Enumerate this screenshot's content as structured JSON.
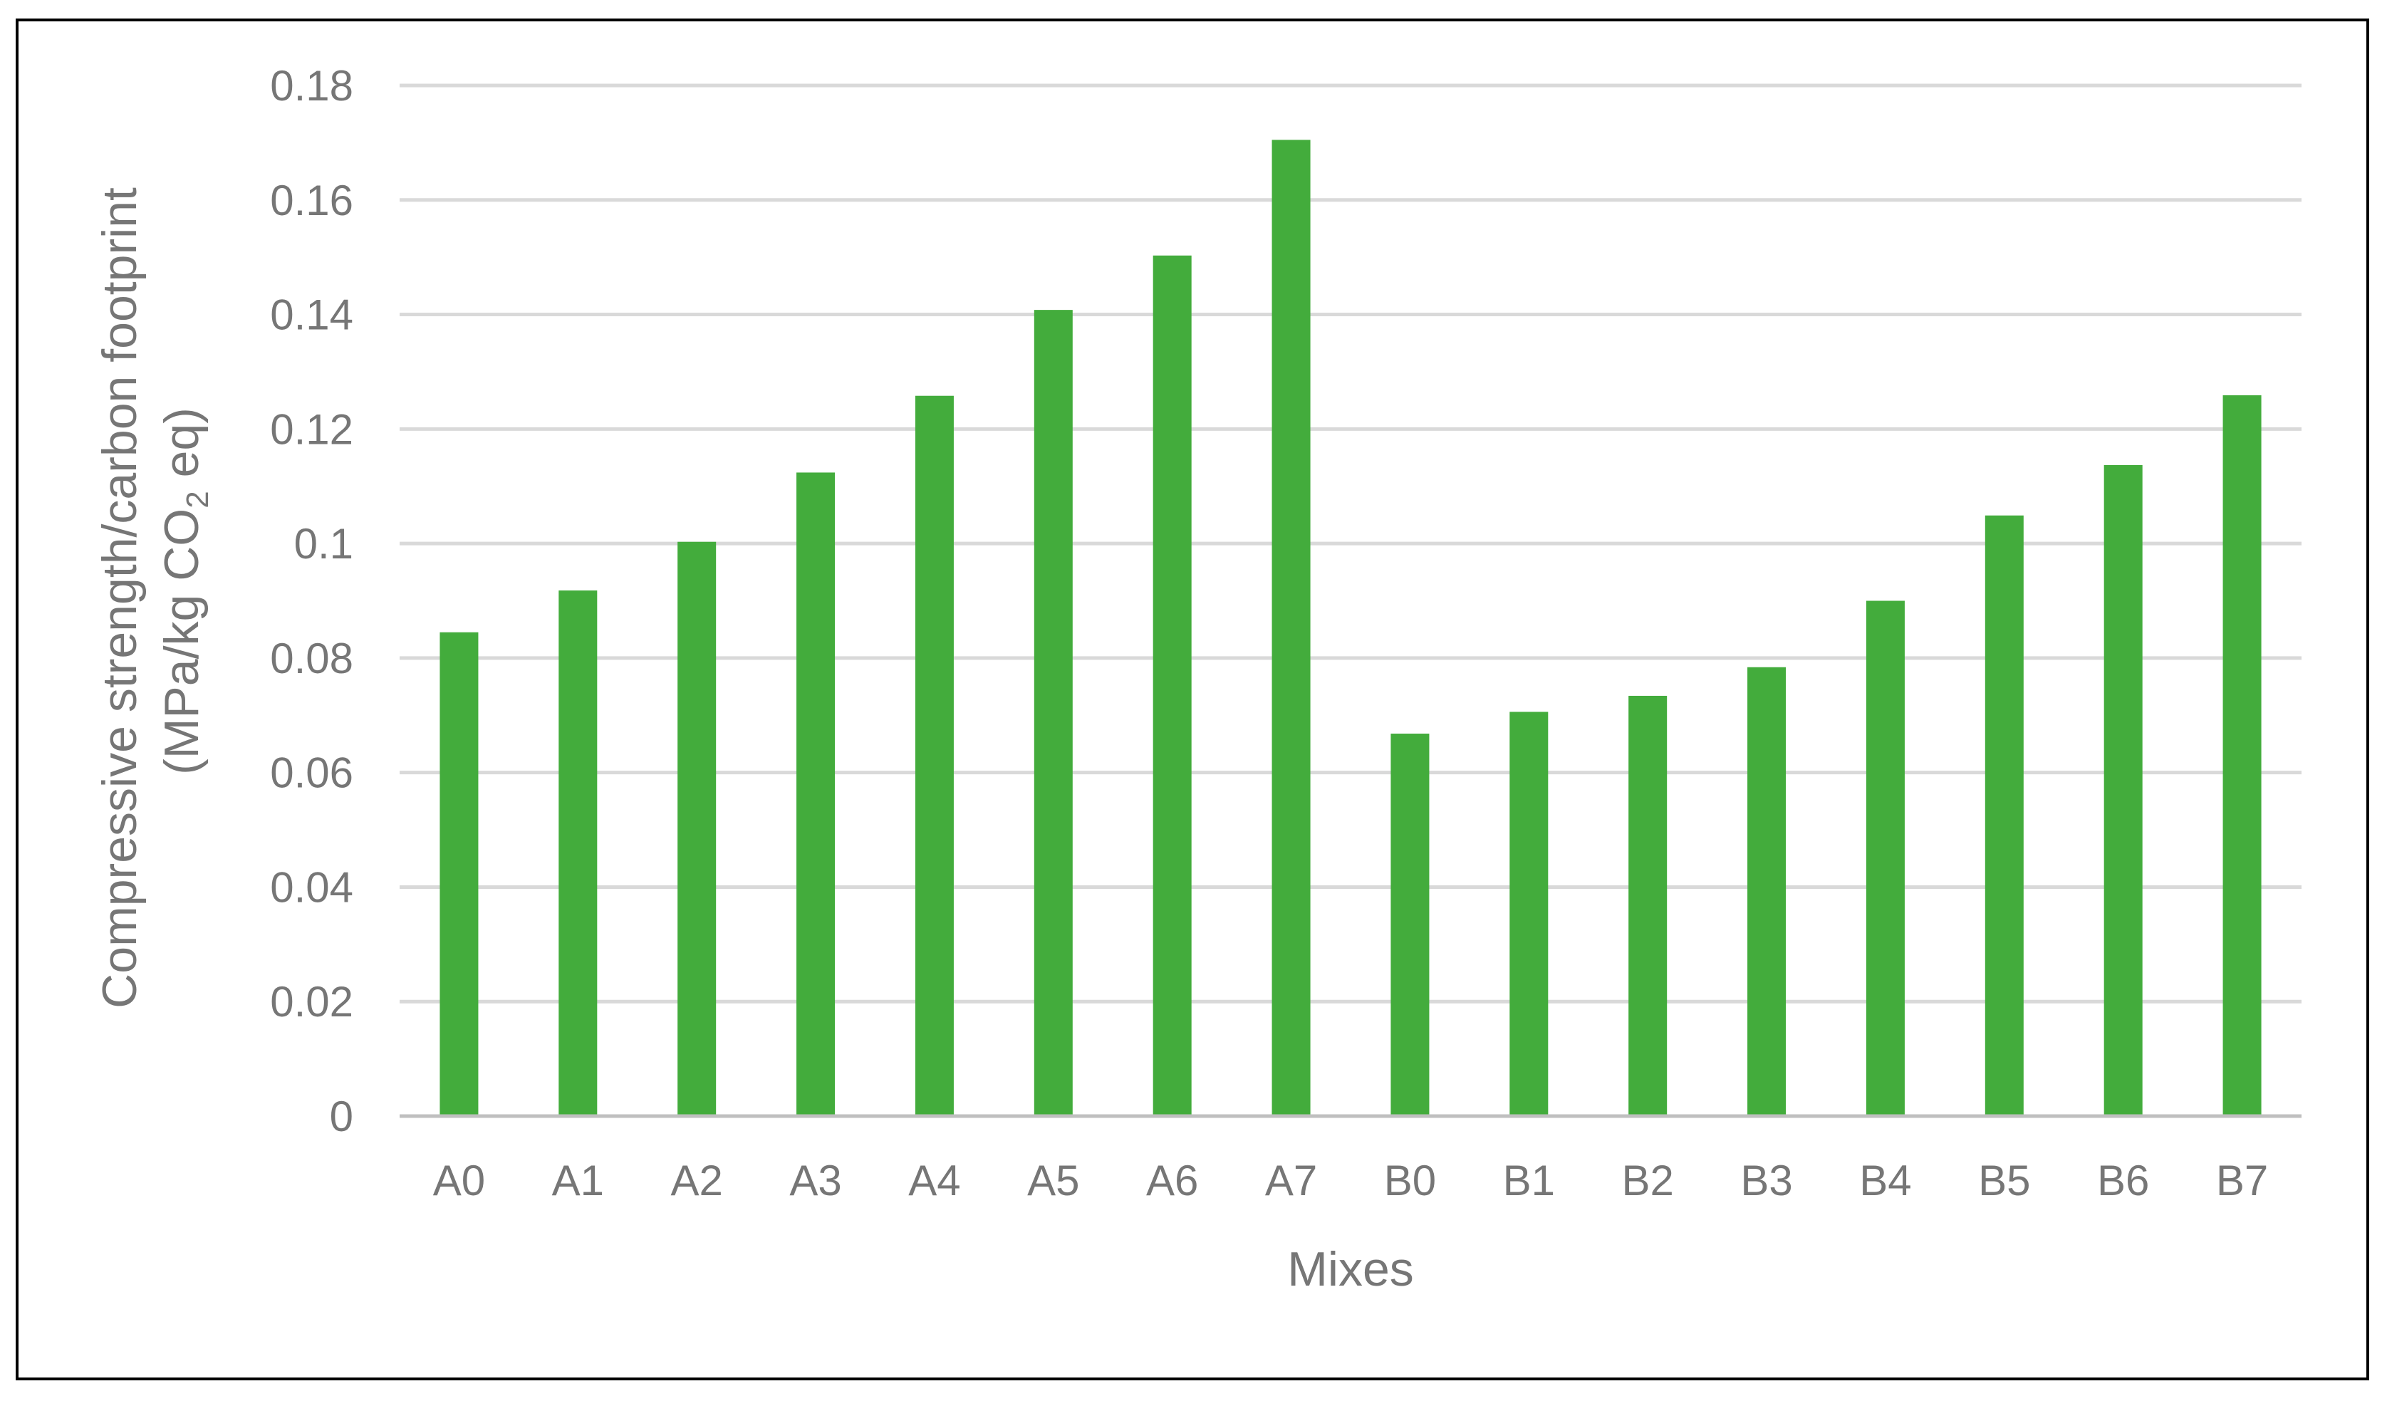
{
  "chart_data": {
    "type": "bar",
    "categories": [
      "A0",
      "A1",
      "A2",
      "A3",
      "A4",
      "A5",
      "A6",
      "A7",
      "B0",
      "B1",
      "B2",
      "B3",
      "B4",
      "B5",
      "B6",
      "B7"
    ],
    "series": [
      {
        "values": [
          0.0845,
          0.0918,
          0.1003,
          0.1124,
          0.1258,
          0.1408,
          0.1503,
          0.1705,
          0.0668,
          0.0706,
          0.0734,
          0.0784,
          0.09,
          0.1049,
          0.1137,
          0.1259
        ],
        "color": "#43AC3C"
      }
    ],
    "title": "",
    "xlabel": "Mixes",
    "ylabel_line1": "Compressive strength/carbon footprint",
    "ylabel_line2_prefix": "(MPa/kg CO",
    "ylabel_line2_sub": "2",
    "ylabel_line2_suffix": " eq)",
    "ylim": [
      0,
      0.18
    ],
    "yticks": [
      "0",
      "0.02",
      "0.04",
      "0.06",
      "0.08",
      "0.1",
      "0.12",
      "0.14",
      "0.16",
      "0.18"
    ],
    "grid": true,
    "legend": "none",
    "gridline_color": "#D9D9D9",
    "axis_line_color": "#BFBFBF",
    "text_color": "#767676"
  }
}
